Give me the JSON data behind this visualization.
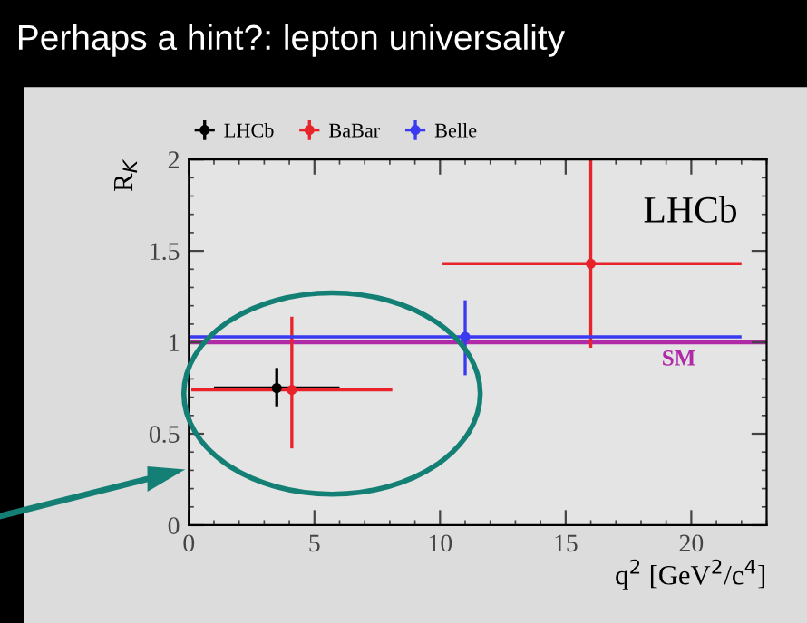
{
  "chart_data": {
    "type": "scatter",
    "title": "Perhaps a hint?: lepton universality",
    "xlabel": "q$^{2}$ [GeV$^{2}$/c$^{4}$]",
    "ylabel": "R$_{K}$",
    "series": [
      {
        "name": "LHCb",
        "color": "#000000",
        "x": [
          3.5
        ],
        "values": [
          0.75
        ],
        "errors": [
          [
            0.65,
            0.86
          ]
        ],
        "xerrors": [
          [
            1.0,
            6.0
          ]
        ]
      },
      {
        "name": "BaBar",
        "color": "#e8232a",
        "x": [
          4.1,
          16.0
        ],
        "values": [
          0.74,
          1.43
        ],
        "errors": [
          [
            0.42,
            1.14
          ],
          [
            0.97,
            2.0
          ]
        ],
        "xerrors": [
          [
            0.1,
            8.1
          ],
          [
            10.1,
            22.0
          ]
        ]
      },
      {
        "name": "Belle",
        "color": "#3a3af0",
        "x": [
          11.0
        ],
        "values": [
          1.03
        ],
        "errors": [
          [
            0.82,
            1.23
          ]
        ],
        "xerrors": [
          [
            0.0,
            22.0
          ]
        ]
      }
    ],
    "ref_lines": [
      {
        "axis": "y",
        "value": 1.0,
        "label": "SM",
        "color": "#b02aa8"
      }
    ],
    "annotations": [
      "LHCb"
    ],
    "xlim": [
      0,
      23
    ],
    "ylim": [
      0,
      2
    ],
    "xticks": [
      0,
      5,
      10,
      15,
      20
    ],
    "yticks": [
      0,
      0.5,
      1,
      1.5,
      2
    ],
    "marker": "circle",
    "legend": "top",
    "grid": false
  }
}
